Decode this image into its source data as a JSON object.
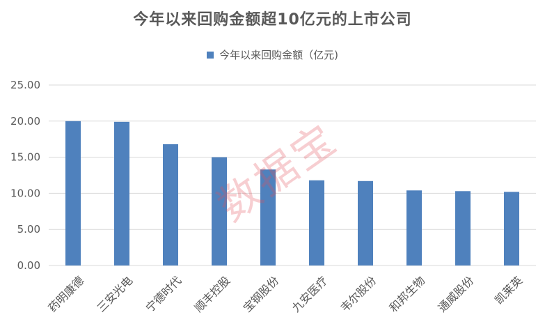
{
  "chart_data": {
    "type": "bar",
    "title": "今年以来回购金额超10亿元的上市公司",
    "legend": "今年以来回购金额（亿元)",
    "legend_position": "top",
    "color": "#4f81bd",
    "categories": [
      "药明康德",
      "三安光电",
      "宁德时代",
      "顺丰控股",
      "宝钢股份",
      "九安医疗",
      "韦尔股份",
      "和邦生物",
      "通威股份",
      "凯莱英"
    ],
    "values": [
      20.0,
      19.9,
      16.8,
      15.0,
      13.3,
      11.8,
      11.7,
      10.4,
      10.3,
      10.2
    ],
    "ylim": [
      0,
      25
    ],
    "yticks": [
      "0.00",
      "5.00",
      "10.00",
      "15.00",
      "20.00",
      "25.00"
    ],
    "grid": true,
    "xlabel": "",
    "ylabel": ""
  },
  "watermark": "数据宝"
}
